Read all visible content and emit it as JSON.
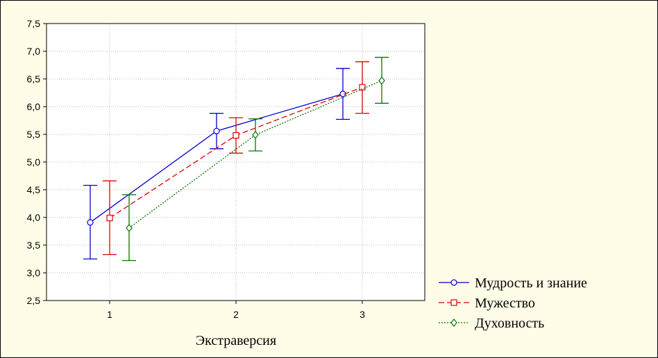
{
  "chart_data": {
    "type": "line",
    "title": "",
    "xlabel": "Экстраверсия",
    "ylabel": "",
    "x": [
      1,
      2,
      3
    ],
    "x_tick_labels": [
      "1",
      "2",
      "3"
    ],
    "ylim": [
      2.5,
      7.5
    ],
    "y_tick_labels": [
      "2,5",
      "3,0",
      "3,5",
      "4,0",
      "4,5",
      "5,0",
      "5,5",
      "6,0",
      "6,5",
      "7,0",
      "7,5"
    ],
    "grid": true,
    "legend_position": "bottom-right",
    "error_bars": true,
    "series": [
      {
        "name": "Мудрость и знание",
        "color": "#0000cc",
        "marker": "circle",
        "line_style": "solid",
        "values": [
          3.91,
          5.56,
          6.23
        ],
        "lower": [
          3.25,
          5.24,
          5.77
        ],
        "upper": [
          4.58,
          5.88,
          6.69
        ]
      },
      {
        "name": "Мужество",
        "color": "#dd0000",
        "marker": "square",
        "line_style": "dashed",
        "values": [
          3.99,
          5.48,
          6.35
        ],
        "lower": [
          3.33,
          5.16,
          5.88
        ],
        "upper": [
          4.66,
          5.8,
          6.81
        ]
      },
      {
        "name": "Духовность",
        "color": "#007700",
        "marker": "diamond",
        "line_style": "dotted",
        "values": [
          3.81,
          5.49,
          6.47
        ],
        "lower": [
          3.22,
          5.2,
          6.06
        ],
        "upper": [
          4.41,
          5.78,
          6.89
        ]
      }
    ]
  }
}
